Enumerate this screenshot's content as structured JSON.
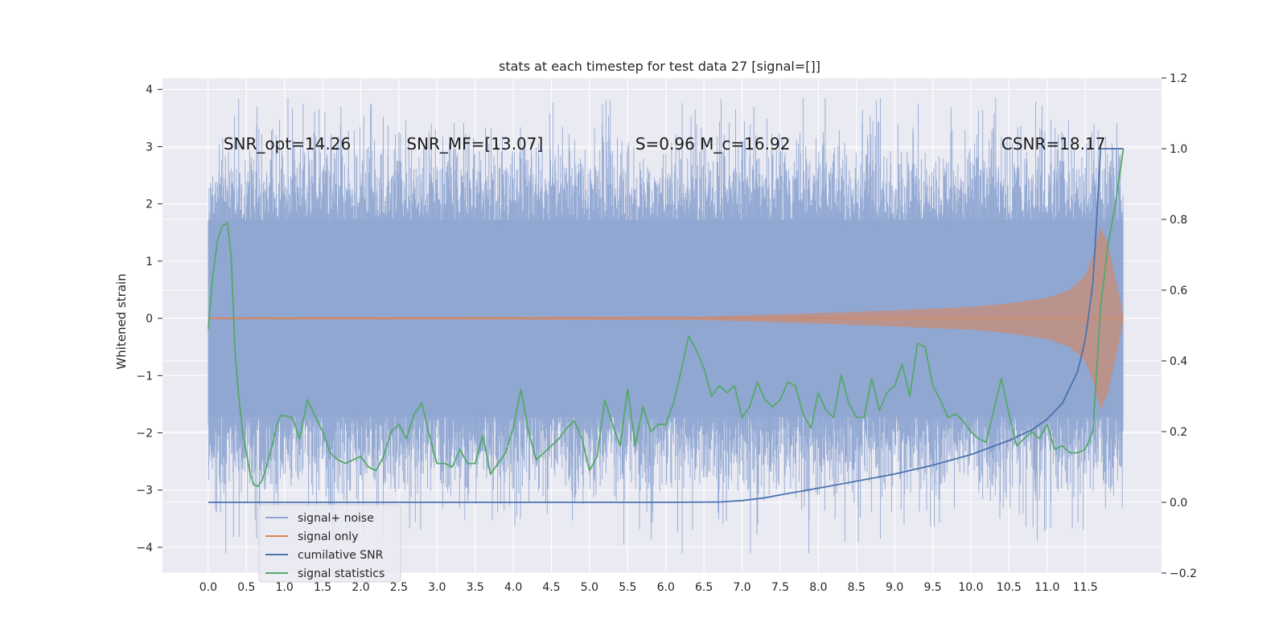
{
  "chart_data": {
    "type": "line",
    "title": "stats at each timestep for test data 27 [signal=[]]",
    "ylabel": "Whitened strain",
    "xlim": [
      -0.6,
      12.5
    ],
    "ylim": [
      -4.45,
      4.2
    ],
    "y2lim": [
      -0.2,
      1.2
    ],
    "x_ticks": [
      0.0,
      0.5,
      1.0,
      1.5,
      2.0,
      2.5,
      3.0,
      3.5,
      4.0,
      4.5,
      5.0,
      5.5,
      6.0,
      6.5,
      7.0,
      7.5,
      8.0,
      8.5,
      9.0,
      9.5,
      10.0,
      10.5,
      11.0,
      11.5
    ],
    "x_tick_labels": [
      "0.0",
      "0.5",
      "1.0",
      "1.5",
      "2.0",
      "2.5",
      "3.0",
      "3.5",
      "4.0",
      "4.5",
      "5.0",
      "5.5",
      "6.0",
      "6.5",
      "7.0",
      "7.5",
      "8.0",
      "8.5",
      "9.0",
      "9.5",
      "10.0",
      "10.5",
      "11.0",
      "11.5"
    ],
    "y_ticks": [
      4,
      3,
      2,
      1,
      0,
      -1,
      -2,
      -3,
      -4
    ],
    "y_tick_labels": [
      "4",
      "3",
      "2",
      "1",
      "0",
      "−1",
      "−2",
      "−3",
      "−4"
    ],
    "y2_ticks": [
      1.2,
      1.0,
      0.8,
      0.6,
      0.4,
      0.2,
      0.0,
      -0.2
    ],
    "y2_tick_labels": [
      "1.2",
      "1.0",
      "0.8",
      "0.6",
      "0.4",
      "0.2",
      "0.0",
      "−0.2"
    ],
    "grid": true,
    "legend_position": "lower-left",
    "colors": {
      "background": "#eaeaf2",
      "grid": "#ffffff",
      "signal_noise": "#8fa6d2",
      "signal_only": "#dd8452",
      "cumulative_snr": "#4c72b0",
      "signal_statistics": "#55a868"
    },
    "annotations": [
      {
        "text": "SNR_opt=14.26",
        "x": 0.2,
        "y": 3.05
      },
      {
        "text": "SNR_MF=[13.07]",
        "x": 2.6,
        "y": 3.05
      },
      {
        "text": "S=0.96   M_c=16.92",
        "x": 5.6,
        "y": 3.05
      },
      {
        "text": "CSNR=18.17",
        "x": 10.4,
        "y": 3.05
      }
    ],
    "series": [
      {
        "name": "signal+ noise",
        "axis": "left",
        "band": {
          "x_start": 0.0,
          "x_end": 12.0,
          "typical_high": 2.1,
          "typical_low": -2.1,
          "peak_high": 3.85,
          "peak_low": -4.1
        }
      },
      {
        "name": "signal only",
        "axis": "left",
        "envelope": {
          "x": [
            0.0,
            6.5,
            7.0,
            8.0,
            9.0,
            10.0,
            10.5,
            11.0,
            11.3,
            11.5,
            11.6,
            11.7,
            11.8,
            12.0
          ],
          "amp": [
            0.02,
            0.03,
            0.05,
            0.09,
            0.14,
            0.2,
            0.26,
            0.36,
            0.5,
            0.75,
            1.1,
            1.6,
            1.3,
            0.05
          ]
        }
      },
      {
        "name": "cumilative SNR",
        "axis": "right",
        "x": [
          0.0,
          6.0,
          6.7,
          7.0,
          7.3,
          7.6,
          8.0,
          8.5,
          9.0,
          9.5,
          10.0,
          10.5,
          10.8,
          11.0,
          11.2,
          11.4,
          11.5,
          11.6,
          11.65,
          11.7,
          12.0
        ],
        "values": [
          0.0,
          0.0,
          0.001,
          0.005,
          0.013,
          0.025,
          0.04,
          0.06,
          0.08,
          0.105,
          0.135,
          0.175,
          0.205,
          0.235,
          0.28,
          0.37,
          0.46,
          0.62,
          0.8,
          1.0,
          1.0
        ]
      },
      {
        "name": "signal statistics",
        "axis": "right",
        "x": [
          0.0,
          0.06,
          0.12,
          0.18,
          0.25,
          0.3,
          0.35,
          0.4,
          0.45,
          0.5,
          0.55,
          0.6,
          0.65,
          0.7,
          0.75,
          0.8,
          0.85,
          0.9,
          0.95,
          1.0,
          1.1,
          1.2,
          1.3,
          1.4,
          1.5,
          1.6,
          1.7,
          1.8,
          1.9,
          2.0,
          2.1,
          2.2,
          2.3,
          2.4,
          2.5,
          2.6,
          2.7,
          2.8,
          2.9,
          3.0,
          3.1,
          3.2,
          3.3,
          3.4,
          3.5,
          3.6,
          3.7,
          3.8,
          3.9,
          4.0,
          4.1,
          4.2,
          4.3,
          4.4,
          4.5,
          4.6,
          4.7,
          4.8,
          4.9,
          5.0,
          5.1,
          5.2,
          5.3,
          5.4,
          5.5,
          5.6,
          5.7,
          5.8,
          5.9,
          6.0,
          6.1,
          6.2,
          6.3,
          6.4,
          6.5,
          6.6,
          6.7,
          6.8,
          6.9,
          7.0,
          7.1,
          7.2,
          7.3,
          7.4,
          7.5,
          7.6,
          7.7,
          7.8,
          7.9,
          8.0,
          8.1,
          8.2,
          8.3,
          8.4,
          8.5,
          8.6,
          8.7,
          8.8,
          8.9,
          9.0,
          9.1,
          9.2,
          9.3,
          9.4,
          9.5,
          9.6,
          9.7,
          9.8,
          9.9,
          10.0,
          10.1,
          10.2,
          10.3,
          10.4,
          10.5,
          10.6,
          10.7,
          10.8,
          10.9,
          11.0,
          11.1,
          11.2,
          11.3,
          11.4,
          11.5,
          11.6,
          11.7,
          11.8,
          11.9,
          12.0
        ],
        "values": [
          0.49,
          0.64,
          0.74,
          0.78,
          0.79,
          0.7,
          0.43,
          0.3,
          0.2,
          0.14,
          0.08,
          0.05,
          0.045,
          0.06,
          0.09,
          0.13,
          0.17,
          0.22,
          0.245,
          0.245,
          0.24,
          0.18,
          0.29,
          0.245,
          0.2,
          0.14,
          0.12,
          0.11,
          0.12,
          0.13,
          0.1,
          0.09,
          0.13,
          0.2,
          0.22,
          0.18,
          0.25,
          0.28,
          0.19,
          0.11,
          0.11,
          0.1,
          0.15,
          0.11,
          0.11,
          0.19,
          0.08,
          0.11,
          0.14,
          0.21,
          0.32,
          0.2,
          0.12,
          0.14,
          0.16,
          0.18,
          0.21,
          0.23,
          0.18,
          0.09,
          0.13,
          0.29,
          0.22,
          0.16,
          0.32,
          0.16,
          0.27,
          0.2,
          0.22,
          0.22,
          0.28,
          0.37,
          0.47,
          0.43,
          0.38,
          0.3,
          0.33,
          0.31,
          0.33,
          0.24,
          0.27,
          0.34,
          0.29,
          0.27,
          0.29,
          0.34,
          0.33,
          0.25,
          0.21,
          0.31,
          0.26,
          0.24,
          0.36,
          0.28,
          0.24,
          0.24,
          0.35,
          0.26,
          0.31,
          0.33,
          0.39,
          0.3,
          0.45,
          0.44,
          0.33,
          0.29,
          0.24,
          0.25,
          0.23,
          0.2,
          0.18,
          0.17,
          0.26,
          0.35,
          0.25,
          0.16,
          0.18,
          0.2,
          0.18,
          0.22,
          0.15,
          0.16,
          0.14,
          0.14,
          0.15,
          0.2,
          0.55,
          0.73,
          0.85,
          1.0
        ]
      }
    ]
  }
}
